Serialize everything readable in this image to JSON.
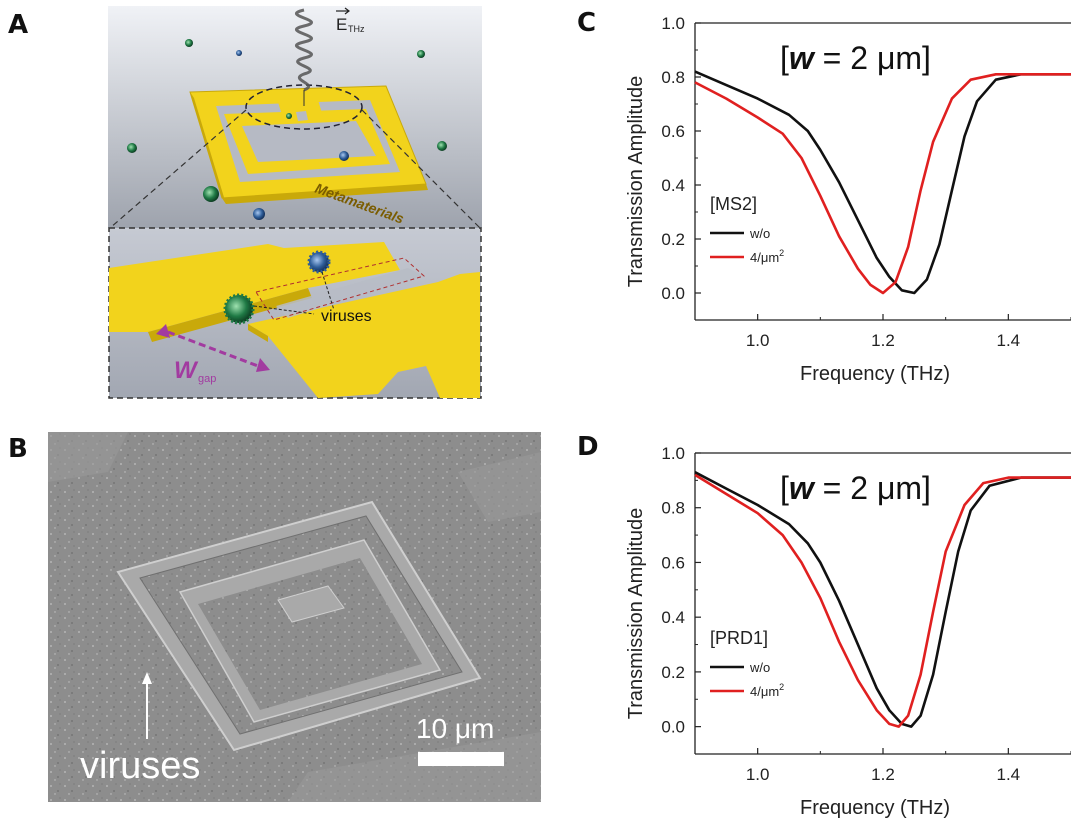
{
  "panels": {
    "a": {
      "label": "A",
      "field_label": "E",
      "field_sub": "THz",
      "metamaterial_label": "Metamaterials",
      "viruses_label": "viruses",
      "gap_label": "W",
      "gap_sub": "gap"
    },
    "b": {
      "label": "B",
      "viruses_label": "viruses",
      "scale_label": "10 μm"
    },
    "c": {
      "label": "C"
    },
    "d": {
      "label": "D"
    }
  },
  "colors": {
    "gold": "#f2d31c",
    "gold_dark": "#c9a90a",
    "virus_green": "#1f7a45",
    "virus_blue": "#2f5e9a",
    "gap_purple": "#a23ba0",
    "series_black": "#111111",
    "series_red": "#e02020"
  },
  "chart_data": [
    {
      "type": "line",
      "panel": "C",
      "annotation_prefix": "[",
      "annotation_var": "w",
      "annotation_rest": " = 2 μm]",
      "xlabel": "Frequency (THz)",
      "ylabel": "Transmission Amplitude",
      "xlim": [
        0.9,
        1.5
      ],
      "ylim": [
        -0.1,
        1.0
      ],
      "xticks": [
        "1.0",
        "1.2",
        "1.4"
      ],
      "yticks": [
        "0.0",
        "0.2",
        "0.4",
        "0.6",
        "0.8",
        "1.0"
      ],
      "legend_title": "[MS2]",
      "legend_position": "lower-left",
      "series": [
        {
          "name": "w/o",
          "color": "#111111",
          "x": [
            0.9,
            0.95,
            1.0,
            1.05,
            1.08,
            1.1,
            1.13,
            1.16,
            1.19,
            1.21,
            1.23,
            1.25,
            1.27,
            1.29,
            1.31,
            1.33,
            1.35,
            1.38,
            1.42,
            1.46,
            1.5
          ],
          "y": [
            0.82,
            0.77,
            0.72,
            0.66,
            0.6,
            0.53,
            0.41,
            0.27,
            0.13,
            0.06,
            0.01,
            0.0,
            0.05,
            0.18,
            0.38,
            0.58,
            0.71,
            0.79,
            0.81,
            0.81,
            0.81
          ]
        },
        {
          "name": "4/μm2",
          "color": "#e02020",
          "x": [
            0.9,
            0.95,
            1.0,
            1.04,
            1.07,
            1.1,
            1.13,
            1.16,
            1.18,
            1.2,
            1.22,
            1.24,
            1.26,
            1.28,
            1.31,
            1.34,
            1.38,
            1.42,
            1.46,
            1.5
          ],
          "y": [
            0.78,
            0.72,
            0.65,
            0.59,
            0.5,
            0.36,
            0.21,
            0.09,
            0.03,
            0.0,
            0.04,
            0.17,
            0.38,
            0.56,
            0.72,
            0.79,
            0.81,
            0.81,
            0.81,
            0.81
          ]
        }
      ]
    },
    {
      "type": "line",
      "panel": "D",
      "annotation_prefix": "[",
      "annotation_var": "w",
      "annotation_rest": " = 2 μm]",
      "xlabel": "Frequency (THz)",
      "ylabel": "Transmission Amplitude",
      "xlim": [
        0.9,
        1.5
      ],
      "ylim": [
        -0.1,
        1.0
      ],
      "xticks": [
        "1.0",
        "1.2",
        "1.4"
      ],
      "yticks": [
        "0.0",
        "0.2",
        "0.4",
        "0.6",
        "0.8",
        "1.0"
      ],
      "legend_title": "[PRD1]",
      "legend_position": "lower-left",
      "series": [
        {
          "name": "w/o",
          "color": "#111111",
          "x": [
            0.9,
            0.95,
            1.0,
            1.05,
            1.08,
            1.1,
            1.13,
            1.16,
            1.19,
            1.21,
            1.23,
            1.245,
            1.26,
            1.28,
            1.3,
            1.32,
            1.34,
            1.37,
            1.42,
            1.46,
            1.5
          ],
          "y": [
            0.93,
            0.87,
            0.81,
            0.74,
            0.67,
            0.6,
            0.46,
            0.3,
            0.14,
            0.06,
            0.01,
            0.0,
            0.04,
            0.19,
            0.42,
            0.64,
            0.79,
            0.88,
            0.91,
            0.91,
            0.91
          ]
        },
        {
          "name": "4/μm2",
          "color": "#e02020",
          "x": [
            0.9,
            0.95,
            1.0,
            1.04,
            1.07,
            1.1,
            1.13,
            1.16,
            1.19,
            1.21,
            1.225,
            1.24,
            1.26,
            1.28,
            1.3,
            1.33,
            1.36,
            1.4,
            1.45,
            1.5
          ],
          "y": [
            0.92,
            0.85,
            0.78,
            0.7,
            0.6,
            0.47,
            0.31,
            0.17,
            0.06,
            0.01,
            0.0,
            0.04,
            0.19,
            0.42,
            0.64,
            0.81,
            0.89,
            0.91,
            0.91,
            0.91
          ]
        }
      ]
    }
  ]
}
